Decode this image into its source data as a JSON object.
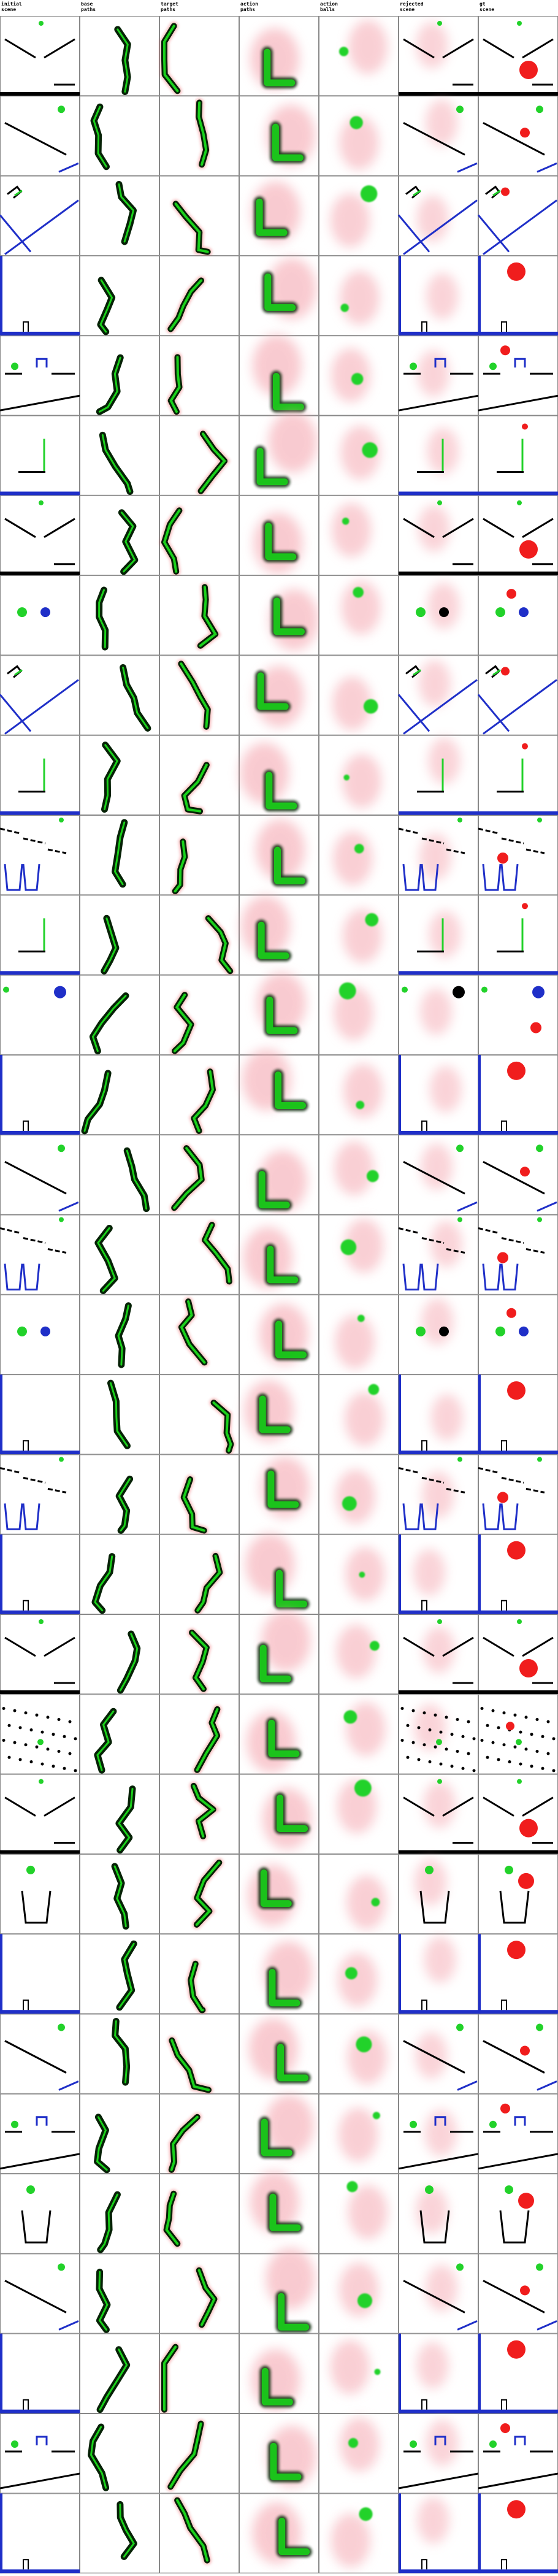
{
  "headers": [
    {
      "line1": "initial",
      "line2": "scene"
    },
    {
      "line1": "base",
      "line2": "paths"
    },
    {
      "line1": "target",
      "line2": "paths"
    },
    {
      "line1": "action",
      "line2": "paths"
    },
    {
      "line1": "action",
      "line2": "balls"
    },
    {
      "line1": "rejected",
      "line2": "scene"
    },
    {
      "line1": "gt",
      "line2": "scene"
    }
  ],
  "colors": {
    "background": "#ffffff",
    "grid_line": "#888888",
    "static_body": "#000000",
    "dynamic_blue": "#1f2fc8",
    "green_body": "#22d22a",
    "red_ball": "#f01d1d",
    "path_dark": "#062206",
    "path_green": "#1bd11b",
    "path_red": "#e8353a",
    "heat_pink": "#f4a0aa"
  },
  "rows": [
    {
      "scene": "v-ramp"
    },
    {
      "scene": "slope-right"
    },
    {
      "scene": "bracket-slope"
    },
    {
      "scene": "blue-walls"
    },
    {
      "scene": "arch-shelf"
    },
    {
      "scene": "l-shape"
    },
    {
      "scene": "v-ramp"
    },
    {
      "scene": "two-balls"
    },
    {
      "scene": "bracket-slope"
    },
    {
      "scene": "l-shape"
    },
    {
      "scene": "steps-cup"
    },
    {
      "scene": "l-shape"
    },
    {
      "scene": "two-balls-right"
    },
    {
      "scene": "blue-walls"
    },
    {
      "scene": "slope-right"
    },
    {
      "scene": "steps-cup"
    },
    {
      "scene": "two-balls"
    },
    {
      "scene": "blue-walls"
    },
    {
      "scene": "steps-cup"
    },
    {
      "scene": "blue-walls"
    },
    {
      "scene": "v-ramp"
    },
    {
      "scene": "pegs"
    },
    {
      "scene": "v-ramp"
    },
    {
      "scene": "cup"
    },
    {
      "scene": "blue-walls"
    },
    {
      "scene": "slope-right"
    },
    {
      "scene": "arch-shelf"
    },
    {
      "scene": "cup"
    },
    {
      "scene": "slope-right"
    },
    {
      "scene": "blue-walls"
    },
    {
      "scene": "arch-shelf"
    },
    {
      "scene": "blue-walls"
    }
  ]
}
